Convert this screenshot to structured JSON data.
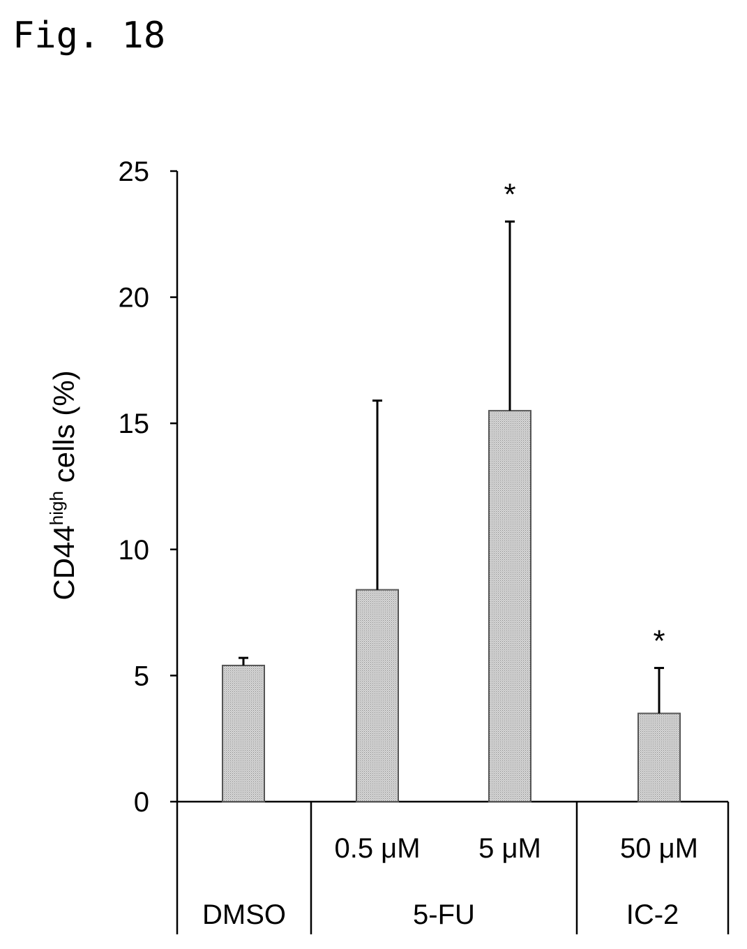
{
  "figure_title": "Fig. 18",
  "chart_data": {
    "type": "bar",
    "ylabel_main": "CD44",
    "ylabel_sup": "high",
    "ylabel_tail": " cells (%)",
    "xlabel": "",
    "ylim": [
      0,
      25
    ],
    "yticks": [
      0,
      5,
      10,
      15,
      20,
      25
    ],
    "categories": [
      "DMSO",
      "5-FU 0.5 μM",
      "5-FU 5 μM",
      "IC-2 50 μM"
    ],
    "values": [
      5.4,
      8.4,
      15.5,
      3.5
    ],
    "error_upper": [
      5.7,
      15.9,
      23.0,
      5.3
    ],
    "significance": [
      "",
      "",
      "*",
      "*"
    ],
    "bar_color": "#c8c8c8",
    "bar_stroke": "#555555",
    "axis_color": "#000000",
    "groups": [
      {
        "name": "DMSO",
        "conc": [
          ""
        ]
      },
      {
        "name": "5-FU",
        "conc": [
          "0.5 μM",
          "5 μM"
        ]
      },
      {
        "name": "IC-2",
        "conc": [
          "50 μM"
        ]
      }
    ],
    "grid": false,
    "legend": "none"
  }
}
